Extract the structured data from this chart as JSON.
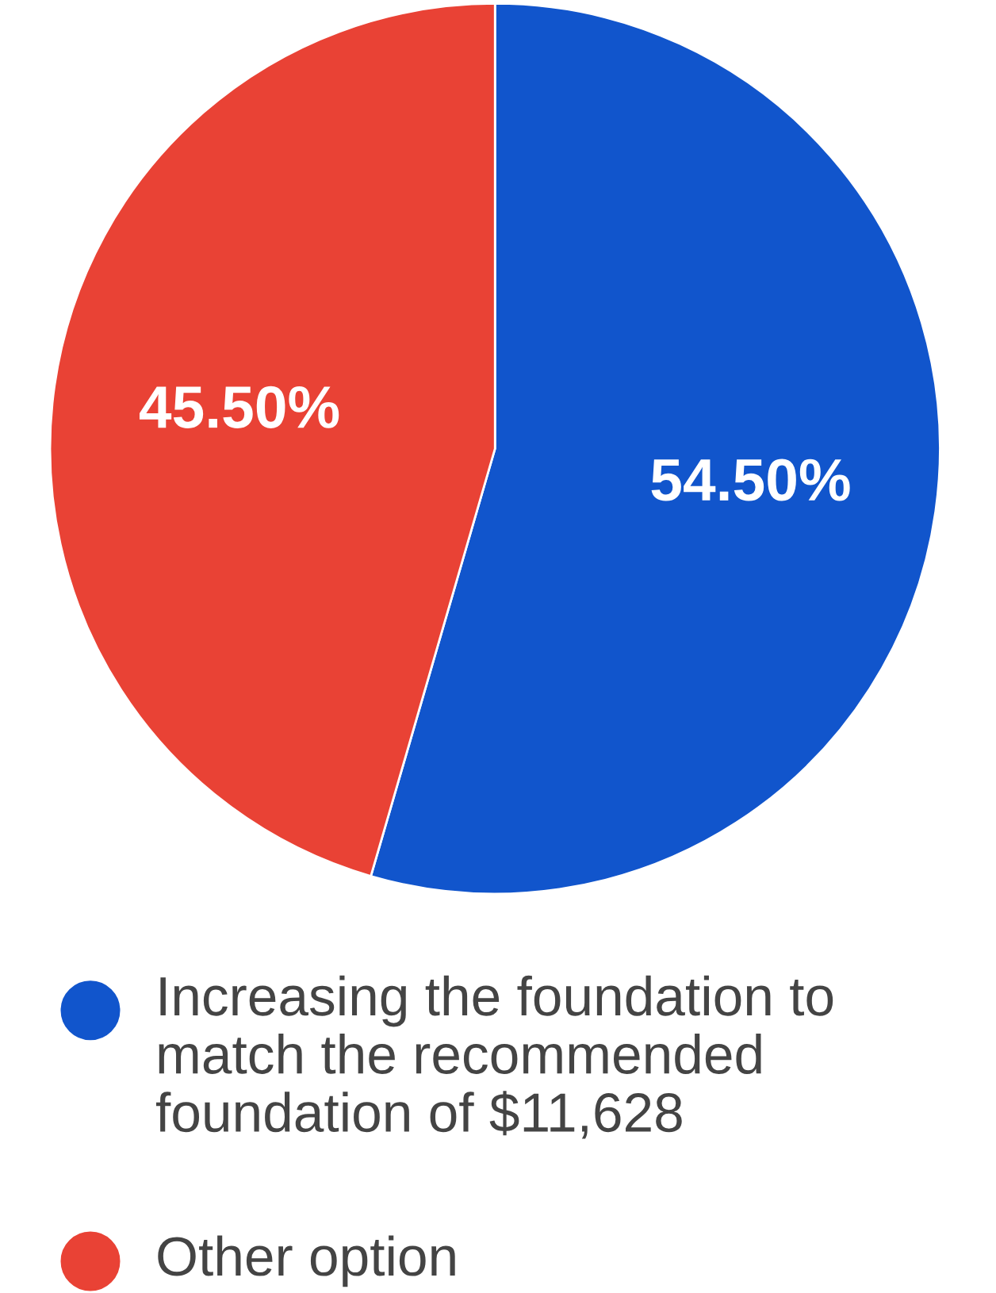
{
  "chart_data": {
    "type": "pie",
    "categories": [
      "Increasing the foundation to match the recommended foundation of $11,628",
      "Other option"
    ],
    "values": [
      54.5,
      45.5
    ],
    "colors": [
      "#1155cc",
      "#e94235"
    ],
    "value_labels": [
      "54.50%",
      "45.50%"
    ],
    "legend": "bottom"
  }
}
